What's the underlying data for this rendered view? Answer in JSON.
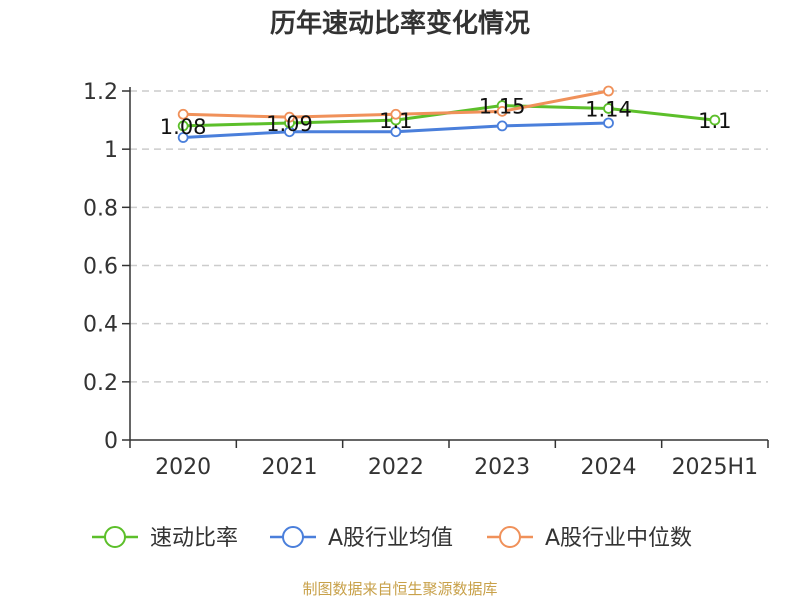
{
  "chart_data": {
    "type": "line",
    "title": "历年速动比率变化情况",
    "categories": [
      "2020",
      "2021",
      "2022",
      "2023",
      "2024",
      "2025H1"
    ],
    "y_ticks": [
      "0",
      "0.2",
      "0.4",
      "0.6",
      "0.8",
      "1",
      "1.2"
    ],
    "ylim": [
      0,
      1.2
    ],
    "grid": true,
    "legend_position": "bottom",
    "series": [
      {
        "name": "速动比率",
        "color": "#5cbf2a",
        "values": [
          1.08,
          1.09,
          1.1,
          1.15,
          1.14,
          1.1
        ],
        "labels": [
          "1.08",
          "1.09",
          "1.1",
          "1.15",
          "1.14",
          "1.1"
        ]
      },
      {
        "name": "A股行业均值",
        "color": "#4a7fdb",
        "values": [
          1.04,
          1.06,
          1.06,
          1.08,
          1.09,
          null
        ]
      },
      {
        "name": "A股行业中位数",
        "color": "#f0915a",
        "values": [
          1.12,
          1.11,
          1.12,
          1.13,
          1.2,
          null
        ]
      }
    ]
  },
  "source": "制图数据来自恒生聚源数据库"
}
